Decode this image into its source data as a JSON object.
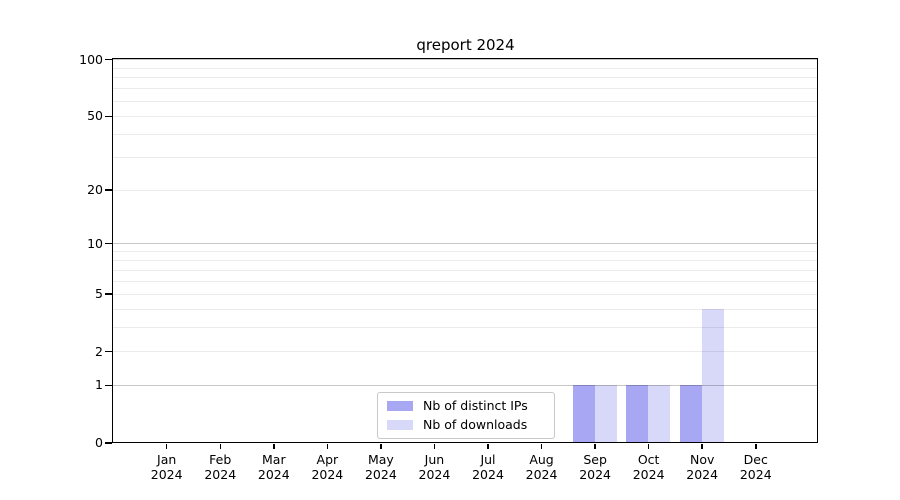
{
  "title": "qreport 2024",
  "chart_data": {
    "type": "bar",
    "title": "qreport 2024",
    "categories": [
      "Jan",
      "Feb",
      "Mar",
      "Apr",
      "May",
      "Jun",
      "Jul",
      "Aug",
      "Sep",
      "Oct",
      "Nov",
      "Dec"
    ],
    "x_year": "2024",
    "series": [
      {
        "name": "Nb of distinct IPs",
        "color": "#a7a7f3",
        "values": [
          0,
          0,
          0,
          0,
          0,
          0,
          0,
          0,
          1,
          1,
          1,
          0
        ]
      },
      {
        "name": "Nb of downloads",
        "color": "#d8d8f8",
        "values": [
          0,
          0,
          0,
          0,
          0,
          0,
          0,
          0,
          1,
          1,
          4,
          0
        ]
      }
    ],
    "yscale": "log1p",
    "ylim": [
      0,
      115
    ],
    "ytick_values": [
      0,
      1,
      2,
      5,
      10,
      20,
      50,
      100
    ],
    "ytick_labels": [
      "0",
      "1",
      "2",
      "5",
      "10",
      "20",
      "50",
      "100"
    ],
    "grid_major_values": [
      1,
      10,
      100
    ],
    "grid_minor_values": [
      2,
      3,
      4,
      5,
      6,
      7,
      8,
      9,
      20,
      30,
      40,
      50,
      60,
      70,
      80,
      90
    ],
    "legend_position": "lower-center-inside",
    "colors": {
      "frame": "#000000",
      "grid_major": "rgba(0,0,0,0.22)",
      "grid_minor": "rgba(0,0,0,0.08)",
      "legend_border": "#c8c8c8",
      "background": "#ffffff"
    }
  }
}
